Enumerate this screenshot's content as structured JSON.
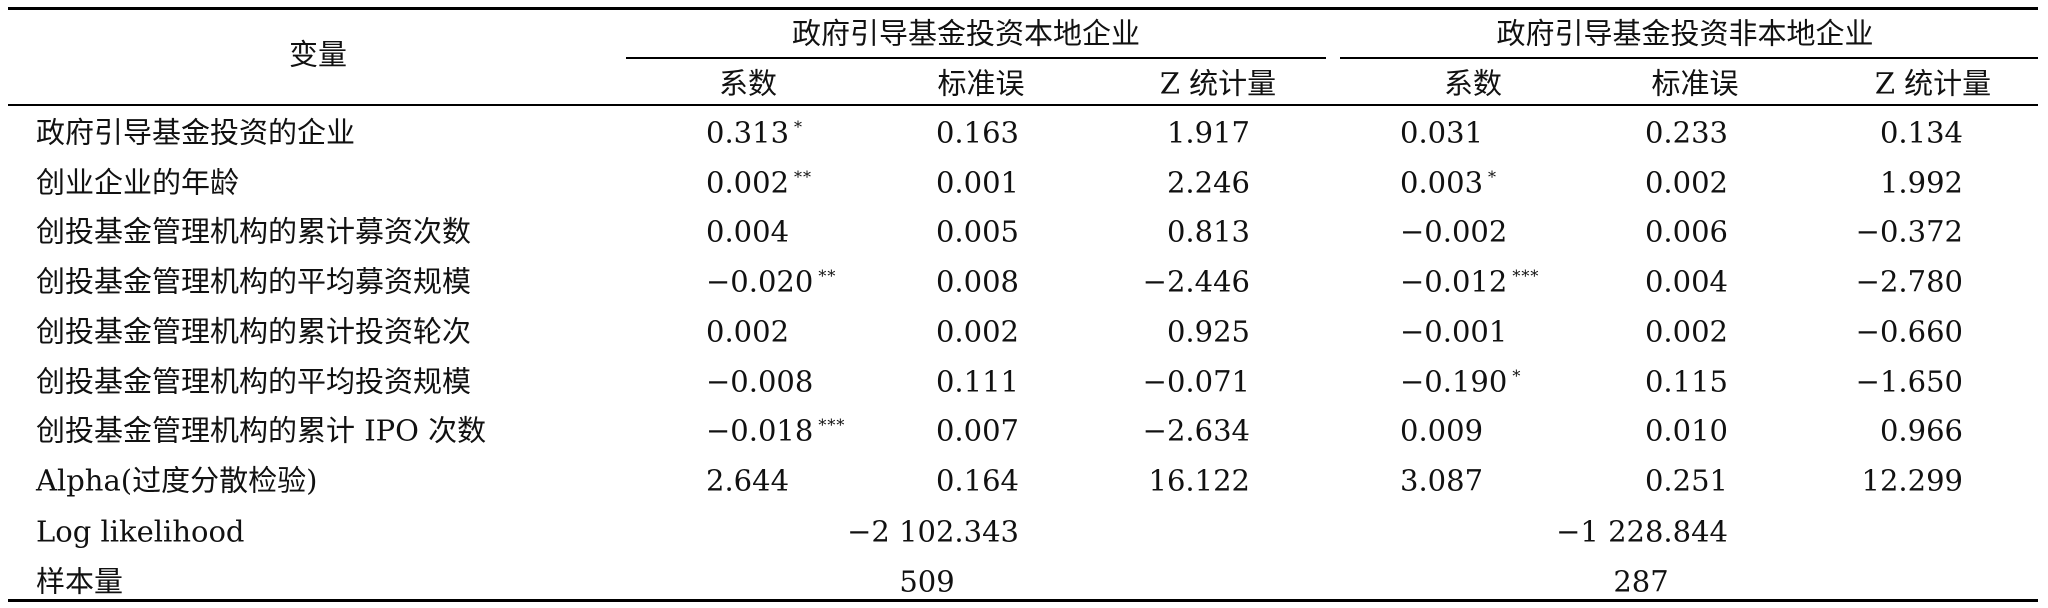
{
  "header": {
    "variable": "变量",
    "group_local": "政府引导基金投资本地企业",
    "group_nonlocal": "政府引导基金投资非本地企业",
    "sub_coef": "系数",
    "sub_se": "标准误",
    "sub_z": "Z 统计量"
  },
  "rows": [
    {
      "label": "政府引导基金投资的企业",
      "local": {
        "coef": "0.313",
        "sig": "*",
        "se": "0.163",
        "z": "1.917"
      },
      "nonlocal": {
        "coef": "0.031",
        "sig": "",
        "se": "0.233",
        "z": "0.134"
      }
    },
    {
      "label": "创业企业的年龄",
      "local": {
        "coef": "0.002",
        "sig": "**",
        "se": "0.001",
        "z": "2.246"
      },
      "nonlocal": {
        "coef": "0.003",
        "sig": "*",
        "se": "0.002",
        "z": "1.992"
      }
    },
    {
      "label": "创投基金管理机构的累计募资次数",
      "local": {
        "coef": "0.004",
        "sig": "",
        "se": "0.005",
        "z": "0.813"
      },
      "nonlocal": {
        "coef": "−0.002",
        "sig": "",
        "se": "0.006",
        "z": "−0.372"
      }
    },
    {
      "label": "创投基金管理机构的平均募资规模",
      "local": {
        "coef": "−0.020",
        "sig": "**",
        "se": "0.008",
        "z": "−2.446"
      },
      "nonlocal": {
        "coef": "−0.012",
        "sig": "***",
        "se": "0.004",
        "z": "−2.780"
      }
    },
    {
      "label": "创投基金管理机构的累计投资轮次",
      "local": {
        "coef": "0.002",
        "sig": "",
        "se": "0.002",
        "z": "0.925"
      },
      "nonlocal": {
        "coef": "−0.001",
        "sig": "",
        "se": "0.002",
        "z": "−0.660"
      }
    },
    {
      "label": "创投基金管理机构的平均投资规模",
      "local": {
        "coef": "−0.008",
        "sig": "",
        "se": "0.111",
        "z": "−0.071"
      },
      "nonlocal": {
        "coef": "−0.190",
        "sig": "*",
        "se": "0.115",
        "z": "−1.650"
      }
    },
    {
      "label": "创投基金管理机构的累计 IPO 次数",
      "local": {
        "coef": "−0.018",
        "sig": "***",
        "se": "0.007",
        "z": "−2.634"
      },
      "nonlocal": {
        "coef": "0.009",
        "sig": "",
        "se": "0.010",
        "z": "0.966"
      }
    },
    {
      "label": "Alpha(过度分散检验)",
      "local": {
        "coef": "2.644",
        "sig": "",
        "se": "0.164",
        "z": "16.122"
      },
      "nonlocal": {
        "coef": "3.087",
        "sig": "",
        "se": "0.251",
        "z": "12.299"
      }
    }
  ],
  "loglik": {
    "label": "Log likelihood",
    "local": "−2 102.343",
    "nonlocal": "−1 228.844"
  },
  "n": {
    "label": "样本量",
    "local": "509",
    "nonlocal": "287"
  }
}
